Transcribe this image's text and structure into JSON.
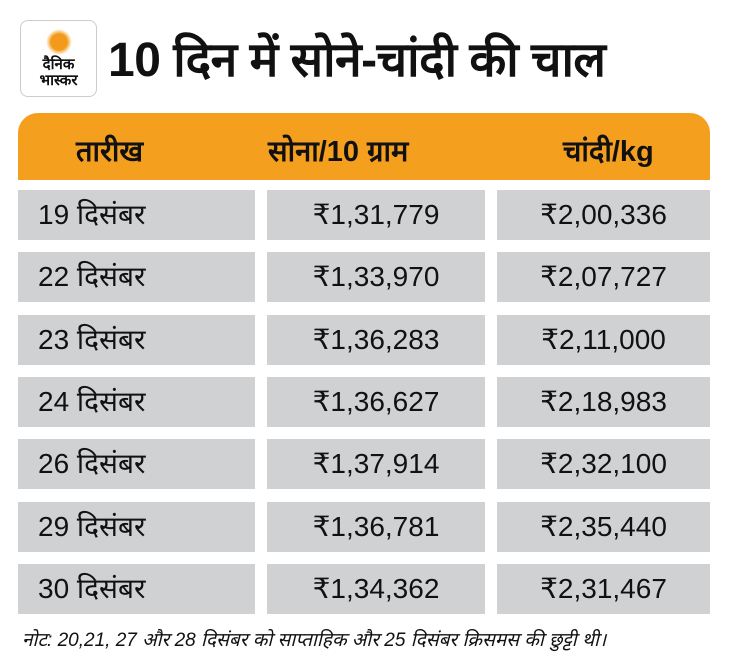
{
  "logo": {
    "line1": "दैनिक",
    "line2": "भास्कर"
  },
  "title": "10 दिन में सोने-चांदी की चाल",
  "table": {
    "headers": [
      "तारीख",
      "सोना/10 ग्राम",
      "चांदी/kg"
    ],
    "rows": [
      [
        "19 दिसंबर",
        "₹1,31,779",
        "₹2,00,336"
      ],
      [
        "22 दिसंबर",
        "₹1,33,970",
        "₹2,07,727"
      ],
      [
        "23 दिसंबर",
        "₹1,36,283",
        "₹2,11,000"
      ],
      [
        "24 दिसंबर",
        "₹1,36,627",
        "₹2,18,983"
      ],
      [
        "26 दिसंबर",
        "₹1,37,914",
        "₹2,32,100"
      ],
      [
        "29 दिसंबर",
        "₹1,36,781",
        "₹2,35,440"
      ],
      [
        "30 दिसंबर",
        "₹1,34,362",
        "₹2,31,467"
      ]
    ]
  },
  "note": "नोट: 20,21, 27 और 28 दिसंबर को साप्ताहिक और 25 दिसंबर क्रिसमस की छुट्टी थी।",
  "colors": {
    "header": "#f59f1e",
    "cell": "#d0d1d3"
  }
}
